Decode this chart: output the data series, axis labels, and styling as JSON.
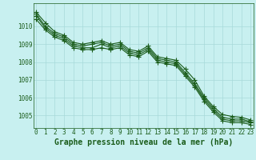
{
  "title": "Graphe pression niveau de la mer (hPa)",
  "background_color": "#c8f0f0",
  "grid_color": "#a8dada",
  "line_color": "#1a5c1a",
  "x_labels": [
    "0",
    "1",
    "2",
    "3",
    "4",
    "5",
    "6",
    "7",
    "8",
    "9",
    "10",
    "11",
    "12",
    "13",
    "14",
    "15",
    "16",
    "17",
    "18",
    "19",
    "20",
    "21",
    "22",
    "23"
  ],
  "series": [
    [
      1010.8,
      1010.2,
      1009.7,
      1009.5,
      1009.1,
      1009.0,
      1009.1,
      1009.2,
      1009.0,
      1009.1,
      1008.7,
      1008.6,
      1008.9,
      1008.3,
      1008.2,
      1008.1,
      1007.6,
      1007.0,
      1006.1,
      1005.5,
      1005.05,
      1004.95,
      1004.9,
      1004.75
    ],
    [
      1010.7,
      1010.0,
      1009.6,
      1009.4,
      1009.0,
      1008.9,
      1009.0,
      1009.1,
      1008.9,
      1009.0,
      1008.6,
      1008.5,
      1008.8,
      1008.2,
      1008.1,
      1008.0,
      1007.4,
      1006.8,
      1006.0,
      1005.4,
      1004.9,
      1004.8,
      1004.8,
      1004.65
    ],
    [
      1010.6,
      1009.9,
      1009.5,
      1009.3,
      1008.9,
      1008.8,
      1008.8,
      1009.0,
      1008.8,
      1008.9,
      1008.5,
      1008.4,
      1008.7,
      1008.1,
      1008.0,
      1007.9,
      1007.3,
      1006.7,
      1005.9,
      1005.3,
      1004.8,
      1004.7,
      1004.7,
      1004.6
    ],
    [
      1010.4,
      1009.8,
      1009.4,
      1009.2,
      1008.8,
      1008.7,
      1008.7,
      1008.8,
      1008.7,
      1008.8,
      1008.4,
      1008.3,
      1008.6,
      1008.0,
      1007.9,
      1007.8,
      1007.2,
      1006.6,
      1005.8,
      1005.2,
      1004.7,
      1004.6,
      1004.6,
      1004.5
    ]
  ],
  "ylim": [
    1004.3,
    1011.3
  ],
  "yticks": [
    1005,
    1006,
    1007,
    1008,
    1009,
    1010
  ],
  "marker": "+",
  "markersize": 4,
  "linewidth": 0.8,
  "title_fontsize": 7,
  "tick_fontsize": 5.5
}
